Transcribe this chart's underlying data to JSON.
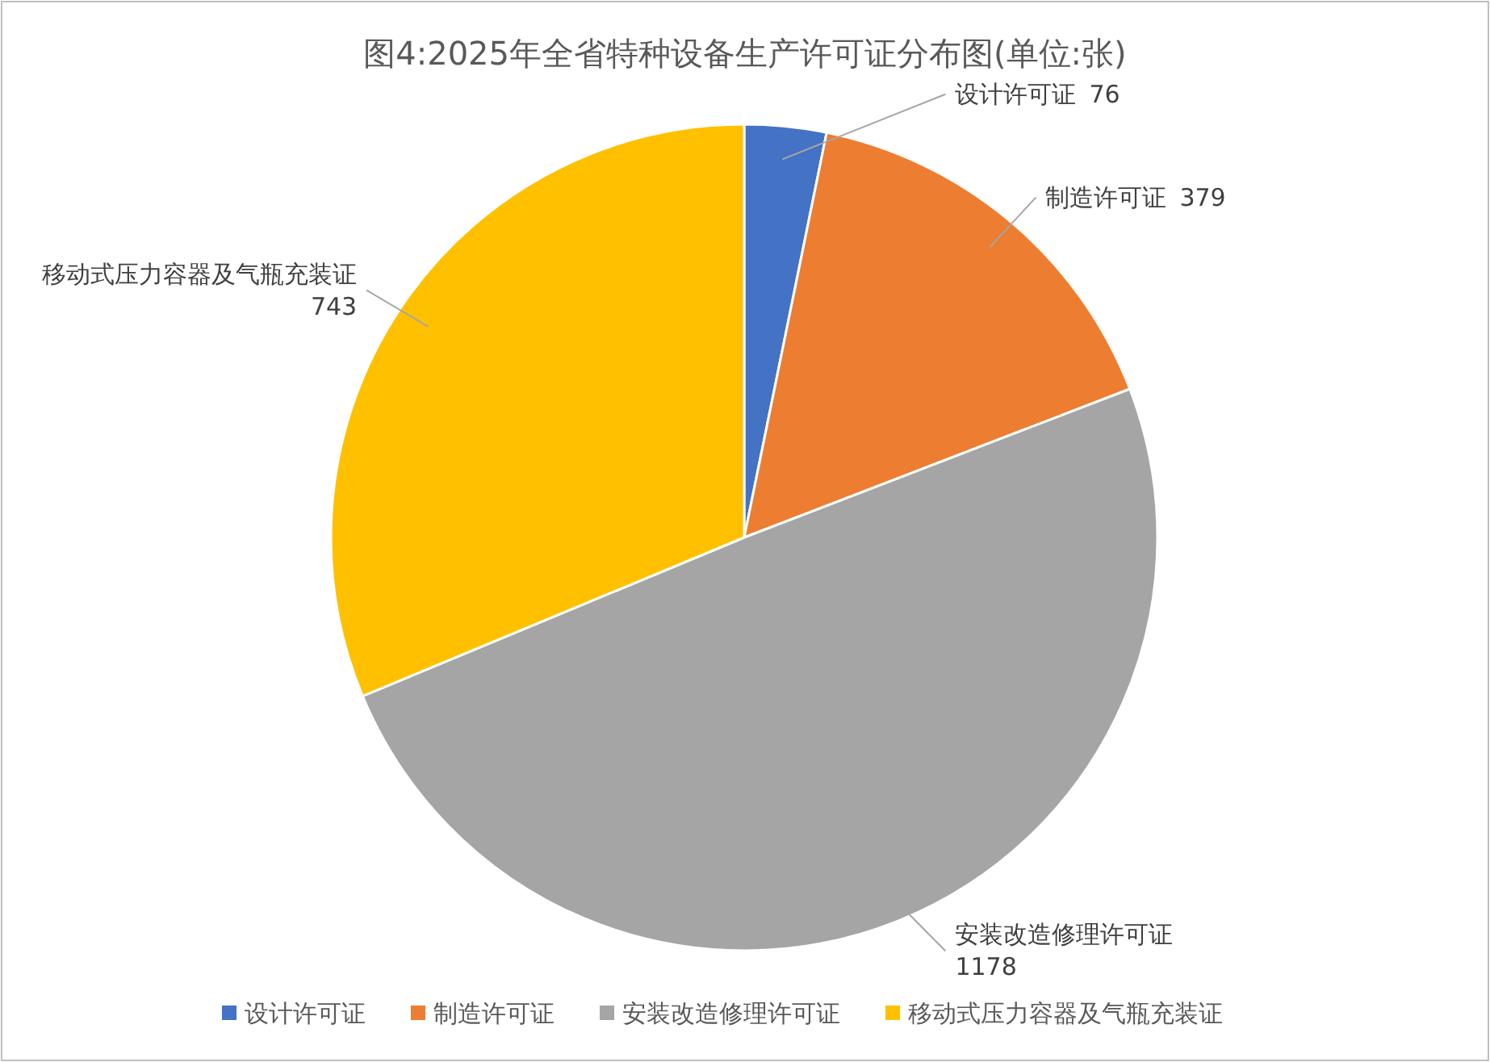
{
  "chart_data": {
    "type": "pie",
    "title": "图4:2025年全省特种设备生产许可证分布图(单位:张)",
    "categories": [
      "设计许可证",
      "制造许可证",
      "安装改造修理许可证",
      "移动式压力容器及气瓶充装证"
    ],
    "values": [
      76,
      379,
      1178,
      743
    ],
    "colors": [
      "#4472c4",
      "#ed7d31",
      "#a5a5a5",
      "#ffc000"
    ],
    "data_labels": true,
    "legend": "bottom"
  }
}
